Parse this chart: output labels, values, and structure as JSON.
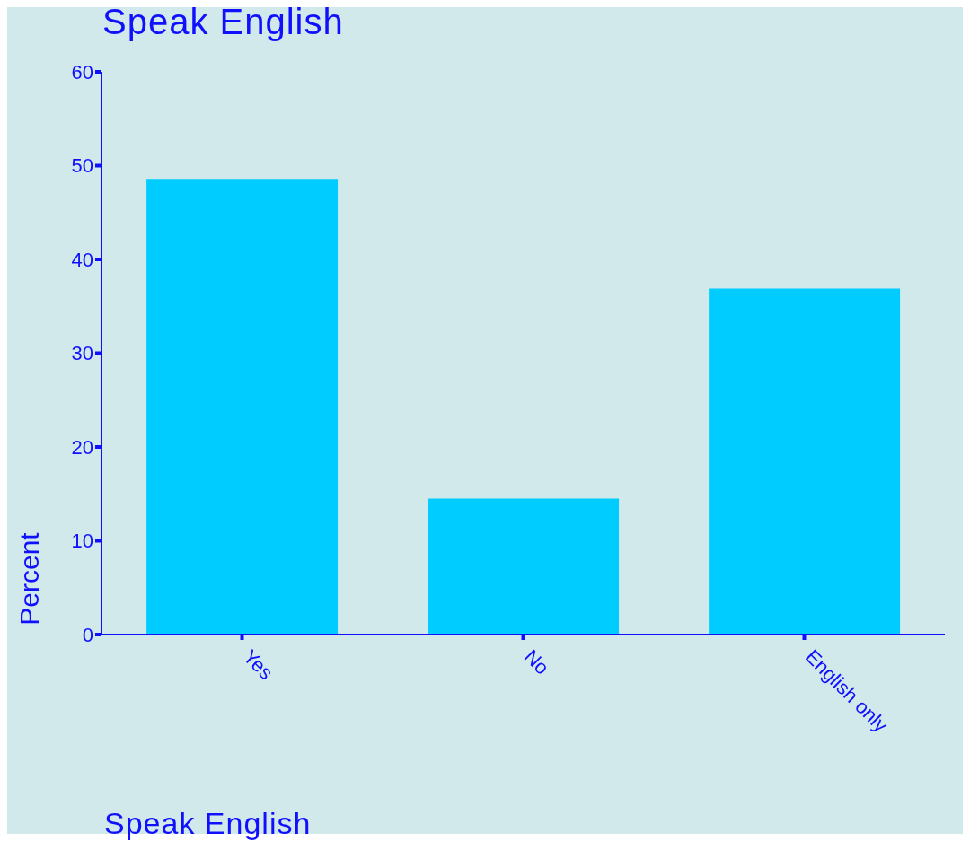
{
  "chart_data": {
    "type": "bar",
    "title": "Speak English",
    "xlabel": "Speak English",
    "ylabel": "Percent",
    "categories": [
      "Yes",
      "No",
      "English only"
    ],
    "values": [
      48.6,
      14.5,
      36.9
    ],
    "color": "#00ccff",
    "ylim": [
      0,
      60
    ],
    "yticks": [
      0,
      10,
      20,
      30,
      40,
      50,
      60
    ]
  }
}
